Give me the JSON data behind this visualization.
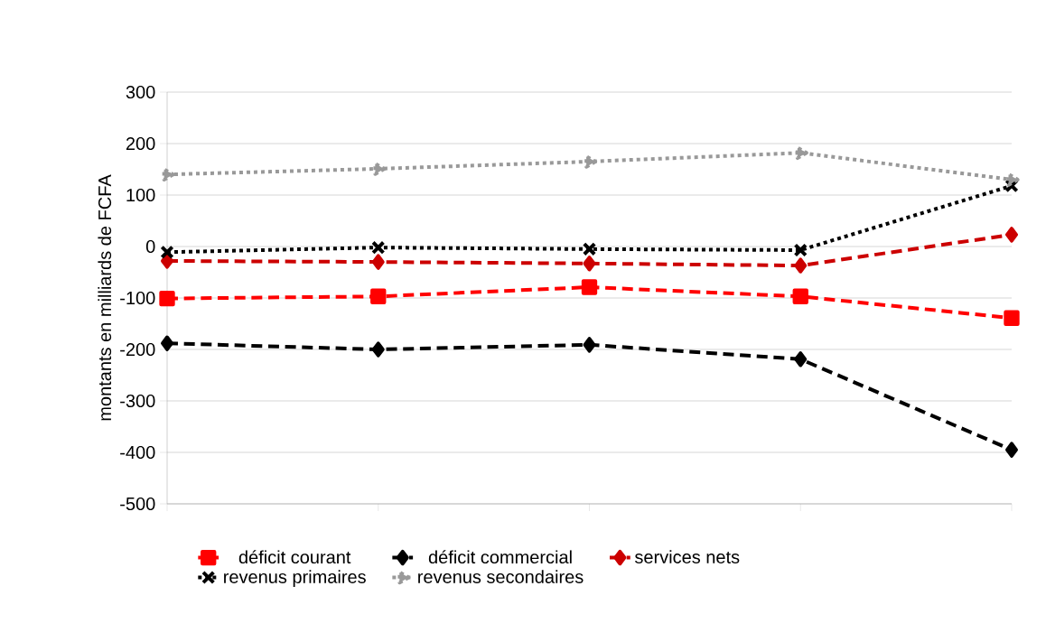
{
  "chart_data": {
    "type": "line",
    "ylabel": "montants en milliards de FCFA",
    "categories": [
      null,
      null,
      null,
      null,
      null
    ],
    "ylim": [
      -500,
      300
    ],
    "yticks": [
      -500,
      -400,
      -300,
      -200,
      -100,
      0,
      100,
      200,
      300
    ],
    "grid": "y",
    "legend": "bottom",
    "series": [
      {
        "name": "déficit courant",
        "color": "#ff0000",
        "marker": "square",
        "line_style": "dashed",
        "values": [
          -101,
          -97,
          -79,
          -97,
          -139
        ]
      },
      {
        "name": "déficit commercial",
        "color": "#000000",
        "marker": "diamond",
        "line_style": "dashed",
        "values": [
          -188,
          -200,
          -191,
          -219,
          -395
        ]
      },
      {
        "name": "services nets",
        "color": "#cc0000",
        "marker": "diamond",
        "line_style": "dashed",
        "values": [
          -28,
          -30,
          -33,
          -37,
          23
        ]
      },
      {
        "name": "revenus primaires",
        "color": "#000000",
        "marker": "cross",
        "line_style": "dotted",
        "values": [
          -11,
          -2,
          -5,
          -7,
          118
        ]
      },
      {
        "name": "revenus secondaires",
        "color": "#999999",
        "marker": "triangle",
        "line_style": "dotted",
        "values": [
          140,
          151,
          165,
          182,
          130
        ]
      }
    ]
  }
}
